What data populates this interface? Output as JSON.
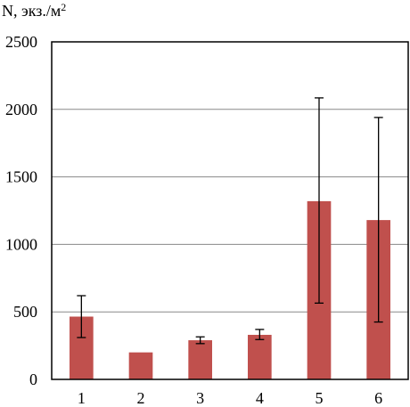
{
  "chart_data": {
    "type": "bar",
    "ylabel": "N, экз./м",
    "ylabel_superscript": "2",
    "categories": [
      "1",
      "2",
      "3",
      "4",
      "5",
      "6"
    ],
    "values": [
      465,
      200,
      290,
      330,
      1320,
      1180
    ],
    "error_bars": [
      {
        "low": 310,
        "high": 620
      },
      null,
      {
        "low": 265,
        "high": 315
      },
      {
        "low": 295,
        "high": 370
      },
      {
        "low": 565,
        "high": 2085
      },
      {
        "low": 425,
        "high": 1940
      }
    ],
    "ylim": [
      0,
      2500
    ],
    "yticks": [
      0,
      500,
      1000,
      1500,
      2000,
      2500
    ],
    "grid": true,
    "colors": {
      "bar": "#c0504d",
      "grid": "#888888",
      "frame": "#000000",
      "error": "#000000"
    }
  }
}
